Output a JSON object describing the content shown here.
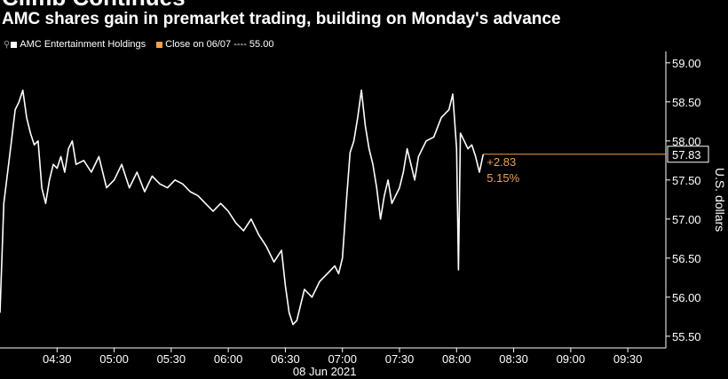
{
  "header": {
    "title": "Climb Continues",
    "subtitle": "AMC shares gain in premarket trading, building on Monday's advance"
  },
  "legend": {
    "items": [
      {
        "label": "AMC Entertainment Holdings",
        "color": "#ffffff"
      },
      {
        "label": "Close on 06/07 ---- 55.00",
        "color": "#f5a04b"
      }
    ]
  },
  "colors": {
    "background": "#000000",
    "line": "#ffffff",
    "accent": "#f5a04b"
  },
  "chart_data": {
    "type": "line",
    "title": "Climb Continues",
    "subtitle": "AMC shares gain in premarket trading, building on Monday's advance",
    "ylabel": "U.S. dollars",
    "xlabel": "08 Jun 2021",
    "ylim": [
      55.35,
      59.1
    ],
    "xlim": [
      "04:00",
      "09:50"
    ],
    "y_ticks": [
      "55.50",
      "56.00",
      "56.50",
      "57.00",
      "57.50",
      "58.00",
      "58.50",
      "59.00"
    ],
    "x_ticks": [
      "04:30",
      "05:00",
      "05:30",
      "06:00",
      "06:30",
      "07:00",
      "07:30",
      "08:00",
      "08:30",
      "09:00",
      "09:30"
    ],
    "date_label": "08 Jun 2021",
    "reference_line": {
      "label": "Close on 06/07",
      "value": 55.0
    },
    "last_value": {
      "value": 57.83,
      "label": "57.83"
    },
    "change": {
      "abs": "+2.83",
      "pct": "5.15%"
    },
    "grid": false,
    "legend_position": "top-left",
    "series": [
      {
        "name": "AMC Entertainment Holdings",
        "x": [
          "04:00",
          "04:02",
          "04:04",
          "04:06",
          "04:08",
          "04:10",
          "04:12",
          "04:14",
          "04:16",
          "04:18",
          "04:20",
          "04:22",
          "04:24",
          "04:26",
          "04:28",
          "04:30",
          "04:32",
          "04:34",
          "04:36",
          "04:38",
          "04:40",
          "04:44",
          "04:48",
          "04:52",
          "04:56",
          "05:00",
          "05:04",
          "05:08",
          "05:12",
          "05:16",
          "05:20",
          "05:24",
          "05:28",
          "05:32",
          "05:36",
          "05:40",
          "05:44",
          "05:48",
          "05:52",
          "05:56",
          "06:00",
          "06:04",
          "06:08",
          "06:12",
          "06:16",
          "06:20",
          "06:24",
          "06:28",
          "06:30",
          "06:32",
          "06:34",
          "06:36",
          "06:38",
          "06:40",
          "06:44",
          "06:48",
          "06:52",
          "06:56",
          "06:58",
          "07:00",
          "07:02",
          "07:04",
          "07:06",
          "07:08",
          "07:10",
          "07:12",
          "07:14",
          "07:16",
          "07:18",
          "07:20",
          "07:22",
          "07:24",
          "07:26",
          "07:28",
          "07:30",
          "07:32",
          "07:34",
          "07:36",
          "07:38",
          "07:40",
          "07:44",
          "07:48",
          "07:52",
          "07:56",
          "07:58",
          "08:00",
          "08:01",
          "08:02",
          "08:04",
          "08:06",
          "08:08",
          "08:10",
          "08:12",
          "08:14"
        ],
        "values": [
          55.8,
          57.2,
          57.6,
          58.0,
          58.4,
          58.5,
          58.65,
          58.3,
          58.1,
          57.95,
          58.0,
          57.4,
          57.2,
          57.5,
          57.7,
          57.65,
          57.8,
          57.6,
          57.9,
          58.0,
          57.7,
          57.75,
          57.6,
          57.8,
          57.4,
          57.5,
          57.7,
          57.4,
          57.6,
          57.35,
          57.55,
          57.45,
          57.4,
          57.5,
          57.45,
          57.35,
          57.3,
          57.2,
          57.1,
          57.2,
          57.1,
          56.95,
          56.85,
          57.0,
          56.8,
          56.65,
          56.45,
          56.6,
          56.15,
          55.8,
          55.65,
          55.7,
          55.9,
          56.1,
          56.0,
          56.2,
          56.3,
          56.4,
          56.3,
          56.5,
          57.2,
          57.85,
          58.0,
          58.3,
          58.65,
          58.2,
          57.9,
          57.7,
          57.4,
          57.0,
          57.3,
          57.5,
          57.2,
          57.3,
          57.4,
          57.6,
          57.9,
          57.7,
          57.5,
          57.8,
          58.0,
          58.05,
          58.3,
          58.4,
          58.6,
          57.9,
          56.35,
          58.1,
          58.0,
          57.9,
          57.95,
          57.8,
          57.6,
          57.83
        ]
      }
    ]
  }
}
